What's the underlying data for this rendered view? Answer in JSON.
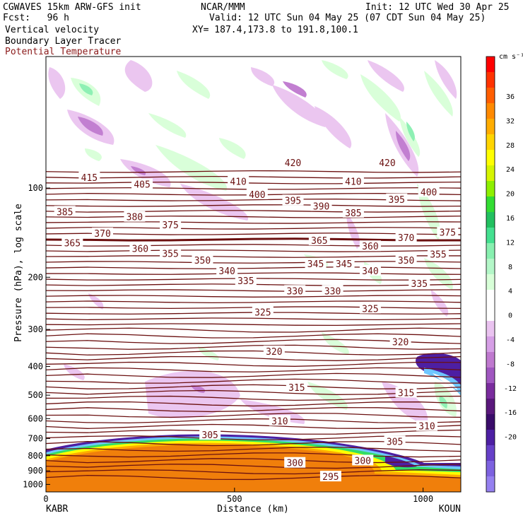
{
  "header": {
    "model": "CGWAVES 15km ARW-GFS init",
    "org": "NCAR/MMM",
    "init": "Init: 12 UTC Wed 30 Apr 25",
    "fcst": "Fcst:   96 h",
    "valid": "Valid: 12 UTC Sun 04 May 25 (07 CDT Sun 04 May 25)",
    "field1": "Vertical velocity",
    "field2": "Boundary Layer Tracer",
    "field3": "Potential Temperature",
    "xy": "XY= 187.4,173.8 to 191.8,100.1"
  },
  "colors": {
    "theta": "#6b1010",
    "tracer": "#f07f0b",
    "field3": "#8b1a1a"
  },
  "chart_data": {
    "type": "heatmap",
    "xlabel": "Distance (km)",
    "ylabel": "Pressure (hPa), log scale",
    "x_ticks": [
      "0",
      "500",
      "1000"
    ],
    "x_range_km": [
      0,
      1100
    ],
    "y_ticks": [
      "100",
      "200",
      "300",
      "400",
      "500",
      "600",
      "700",
      "800",
      "900",
      "1000"
    ],
    "y_scale": "log",
    "left_station": "KABR",
    "right_station": "KOUN",
    "colorbar": {
      "unit": "cm s⁻¹",
      "labels": [
        "36",
        "32",
        "28",
        "24",
        "20",
        "16",
        "12",
        "8",
        "4",
        "0",
        "-4",
        "-8",
        "-12",
        "-16",
        "-20"
      ],
      "colors": [
        "#ff0000",
        "#ff3300",
        "#ff5e00",
        "#ff8a00",
        "#ffad00",
        "#ffd500",
        "#ffff00",
        "#d6f500",
        "#8ef000",
        "#33dd33",
        "#22c060",
        "#44e090",
        "#88f0b0",
        "#b4f7c8",
        "#d8ffd8",
        "#ffffff",
        "#ffffff",
        "#eac3f0",
        "#d69fe6",
        "#bf79cf",
        "#a057c0",
        "#7a2c9e",
        "#5a187c",
        "#3a0c6a",
        "#4d1fa3",
        "#6640c8",
        "#7d62e0",
        "#9580f0"
      ]
    },
    "theta_labels": [
      {
        "label": "415",
        "x_km": 115,
        "p": 92
      },
      {
        "label": "405",
        "x_km": 255,
        "p": 97
      },
      {
        "label": "410",
        "x_km": 510,
        "p": 95
      },
      {
        "label": "420",
        "x_km": 655,
        "p": 82
      },
      {
        "label": "420",
        "x_km": 905,
        "p": 82
      },
      {
        "label": "410",
        "x_km": 815,
        "p": 95
      },
      {
        "label": "400",
        "x_km": 560,
        "p": 105
      },
      {
        "label": "395",
        "x_km": 655,
        "p": 110
      },
      {
        "label": "390",
        "x_km": 730,
        "p": 115
      },
      {
        "label": "385",
        "x_km": 815,
        "p": 121
      },
      {
        "label": "395",
        "x_km": 930,
        "p": 109
      },
      {
        "label": "400",
        "x_km": 1015,
        "p": 103
      },
      {
        "label": "385",
        "x_km": 50,
        "p": 120
      },
      {
        "label": "380",
        "x_km": 235,
        "p": 125
      },
      {
        "label": "375",
        "x_km": 330,
        "p": 133
      },
      {
        "label": "370",
        "x_km": 150,
        "p": 142
      },
      {
        "label": "365",
        "x_km": 70,
        "p": 153
      },
      {
        "label": "360",
        "x_km": 250,
        "p": 160
      },
      {
        "label": "355",
        "x_km": 330,
        "p": 166
      },
      {
        "label": "350",
        "x_km": 415,
        "p": 175
      },
      {
        "label": "365",
        "x_km": 725,
        "p": 150
      },
      {
        "label": "360",
        "x_km": 860,
        "p": 157
      },
      {
        "label": "370",
        "x_km": 955,
        "p": 147
      },
      {
        "label": "375",
        "x_km": 1065,
        "p": 141
      },
      {
        "label": "355",
        "x_km": 1040,
        "p": 167
      },
      {
        "label": "350",
        "x_km": 955,
        "p": 175
      },
      {
        "label": "345",
        "x_km": 715,
        "p": 180
      },
      {
        "label": "345",
        "x_km": 790,
        "p": 180
      },
      {
        "label": "340",
        "x_km": 860,
        "p": 190
      },
      {
        "label": "340",
        "x_km": 480,
        "p": 190
      },
      {
        "label": "335",
        "x_km": 530,
        "p": 205
      },
      {
        "label": "335",
        "x_km": 990,
        "p": 210
      },
      {
        "label": "330",
        "x_km": 660,
        "p": 222
      },
      {
        "label": "330",
        "x_km": 760,
        "p": 222
      },
      {
        "label": "325",
        "x_km": 575,
        "p": 262
      },
      {
        "label": "325",
        "x_km": 860,
        "p": 255
      },
      {
        "label": "320",
        "x_km": 605,
        "p": 355
      },
      {
        "label": "320",
        "x_km": 940,
        "p": 330
      },
      {
        "label": "315",
        "x_km": 665,
        "p": 470
      },
      {
        "label": "315",
        "x_km": 955,
        "p": 490
      },
      {
        "label": "310",
        "x_km": 620,
        "p": 610
      },
      {
        "label": "310",
        "x_km": 1010,
        "p": 635
      },
      {
        "label": "305",
        "x_km": 435,
        "p": 680
      },
      {
        "label": "305",
        "x_km": 925,
        "p": 715
      },
      {
        "label": "300",
        "x_km": 660,
        "p": 845
      },
      {
        "label": "300",
        "x_km": 840,
        "p": 830
      },
      {
        "label": "295",
        "x_km": 755,
        "p": 940
      }
    ]
  }
}
